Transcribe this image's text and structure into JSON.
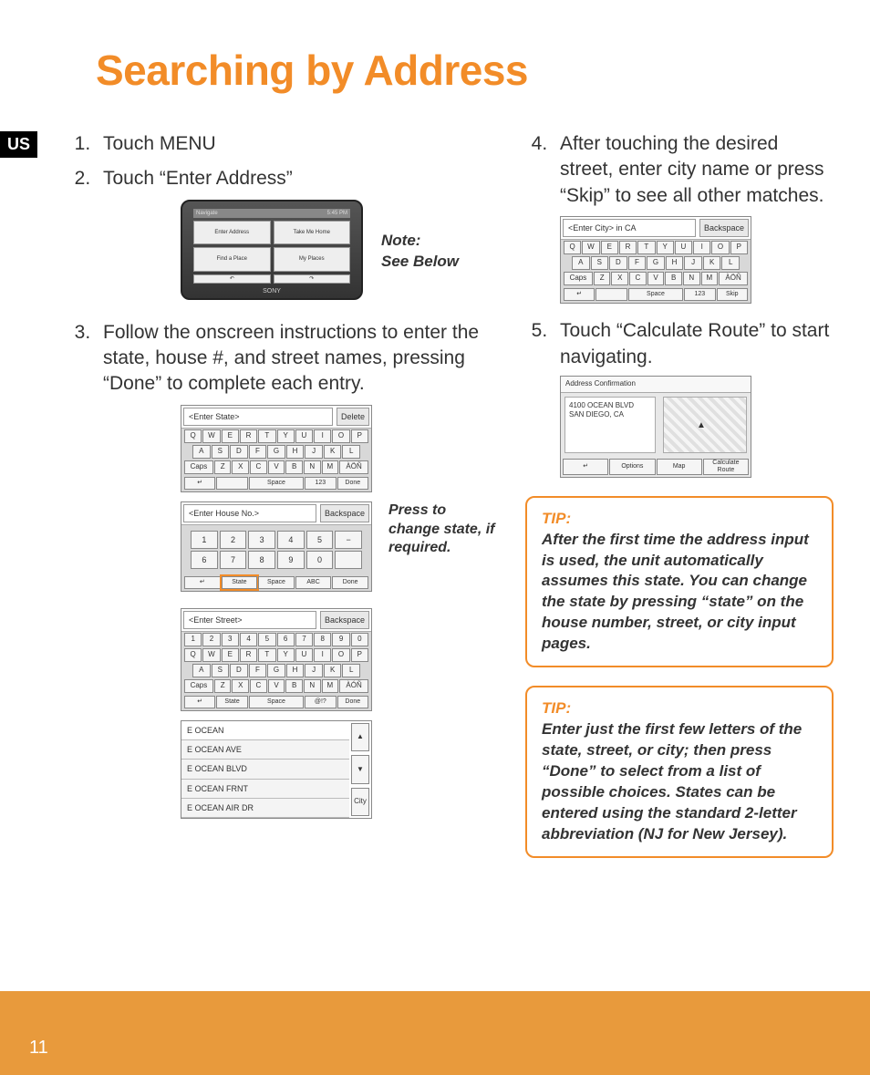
{
  "colors": {
    "accent": "#f28c28",
    "footer": "#e89a3c",
    "text": "#333333",
    "bg": "#ffffff"
  },
  "page": {
    "title": "Searching by Address",
    "us_badge": "US",
    "number": "11"
  },
  "left": {
    "step1": "Touch MENU",
    "step2": "Touch “Enter Address”",
    "step3": "Follow the onscreen instructions to enter the state, house #, and street names, pressing “Done” to complete each entry.",
    "note_label": "Note:",
    "note_text": "See Below",
    "press_note": "Press to change state, if required."
  },
  "device": {
    "nav_label": "Navigate",
    "status": "5:45 PM",
    "btn_enter_address": "Enter Address",
    "btn_take_home": "Take Me Home",
    "btn_find_place": "Find a Place",
    "btn_my_places": "My Places",
    "brand": "SONY"
  },
  "kbd_state": {
    "field": "<Enter State>",
    "action": "Delete",
    "row1": [
      "Q",
      "W",
      "E",
      "R",
      "T",
      "Y",
      "U",
      "I",
      "O",
      "P"
    ],
    "row2": [
      "A",
      "S",
      "D",
      "F",
      "G",
      "H",
      "J",
      "K",
      "L"
    ],
    "row3": [
      "Caps",
      "Z",
      "X",
      "C",
      "V",
      "B",
      "N",
      "M",
      "ÀÖÑ"
    ],
    "footer": [
      "↵",
      "",
      "Space",
      "123",
      "Done"
    ]
  },
  "kbd_house": {
    "field": "<Enter House No.>",
    "action": "Backspace",
    "row1": [
      "1",
      "2",
      "3",
      "4",
      "5",
      "−"
    ],
    "row2": [
      "6",
      "7",
      "8",
      "9",
      "0",
      ""
    ],
    "footer": [
      "↵",
      "State",
      "Space",
      "ABC",
      "Done"
    ]
  },
  "kbd_street": {
    "field": "<Enter Street>",
    "action": "Backspace",
    "row0": [
      "1",
      "2",
      "3",
      "4",
      "5",
      "6",
      "7",
      "8",
      "9",
      "0"
    ],
    "row1": [
      "Q",
      "W",
      "E",
      "R",
      "T",
      "Y",
      "U",
      "I",
      "O",
      "P"
    ],
    "row2": [
      "A",
      "S",
      "D",
      "F",
      "G",
      "H",
      "J",
      "K",
      "L"
    ],
    "row3": [
      "Caps",
      "Z",
      "X",
      "C",
      "V",
      "B",
      "N",
      "M",
      "ÀÓÑ"
    ],
    "footer": [
      "↵",
      "State",
      "Space",
      "@!?",
      "Done"
    ]
  },
  "street_list": {
    "header": "E OCEAN",
    "items": [
      "E OCEAN AVE",
      "E OCEAN BLVD",
      "E OCEAN FRNT",
      "E OCEAN AIR DR"
    ],
    "up": "▲",
    "down": "▼",
    "city": "City"
  },
  "right": {
    "step4": "After touching the desired street, enter city name or press “Skip” to see all other matches.",
    "step5": "Touch “Calculate Route” to start navigating."
  },
  "kbd_city": {
    "field": "<Enter City> in CA",
    "action": "Backspace",
    "row1": [
      "Q",
      "W",
      "E",
      "R",
      "T",
      "Y",
      "U",
      "I",
      "O",
      "P"
    ],
    "row2": [
      "A",
      "S",
      "D",
      "F",
      "G",
      "H",
      "J",
      "K",
      "L"
    ],
    "row3": [
      "Caps",
      "Z",
      "X",
      "C",
      "V",
      "B",
      "N",
      "M",
      "ÀÖÑ"
    ],
    "footer": [
      "↵",
      "",
      "Space",
      "123",
      "Skip"
    ]
  },
  "confirm": {
    "title": "Address Confirmation",
    "line1": "4100 OCEAN BLVD",
    "line2": "SAN DIEGO, CA",
    "footer": [
      "↵",
      "Options",
      "Map",
      "Calculate Route"
    ]
  },
  "tip1": {
    "label": "TIP:",
    "body": "After the first time the address input is used, the unit automatically assumes this state. You can change the state by pressing “state” on the house number, street, or city input pages."
  },
  "tip2": {
    "label": "TIP:",
    "body": "Enter just the first few letters of the state, street, or city; then press “Done” to select from a list of possible choices. States can be entered using the standard 2-letter abbreviation (NJ for New Jersey)."
  }
}
